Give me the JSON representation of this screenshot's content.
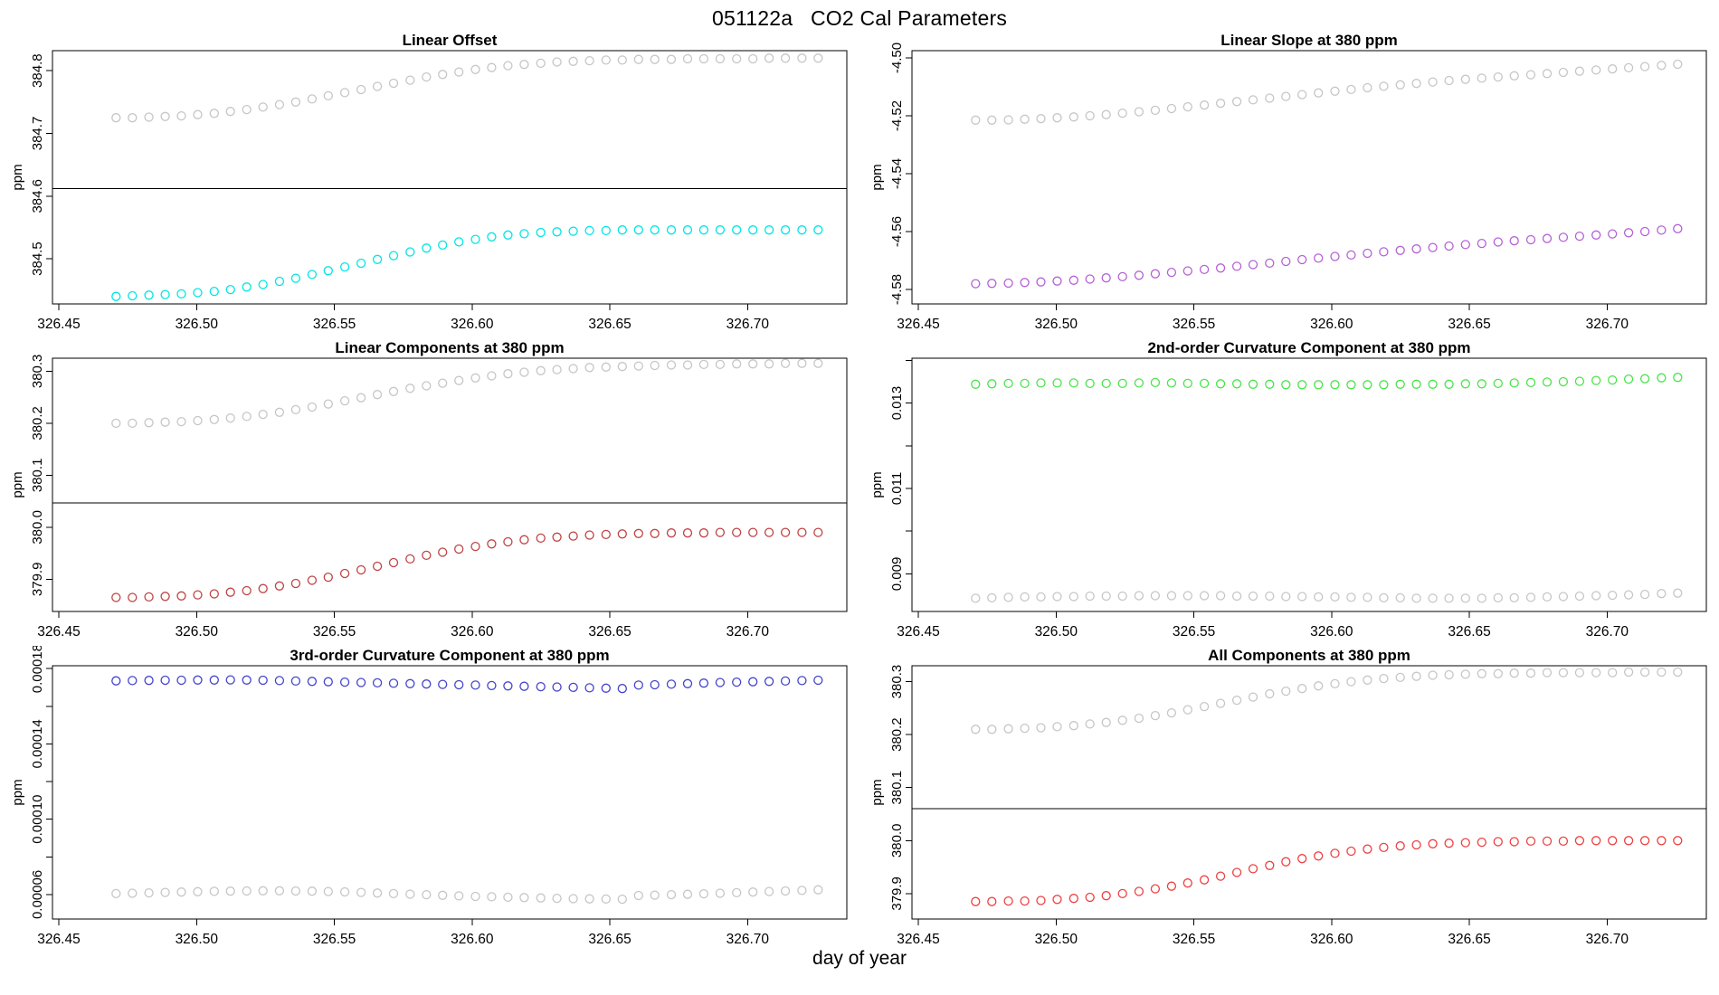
{
  "title": "051122a   CO2 Cal Parameters",
  "xlabel": "day of year",
  "background": "#ffffff",
  "colors": {
    "gray": "#c6c6c6",
    "cyan": "#00e5e5",
    "purple": "#b661d6",
    "dark_red": "#c04343",
    "green": "#4ae44a",
    "blue": "#4444cc",
    "red": "#ee4040",
    "axis": "#000000"
  },
  "x_axis": {
    "lim": [
      326.4477,
      326.736
    ],
    "ticks": [
      {
        "v": 326.45,
        "label": "326.45"
      },
      {
        "v": 326.5,
        "label": "326.50"
      },
      {
        "v": 326.55,
        "label": "326.55"
      },
      {
        "v": 326.6,
        "label": "326.60"
      },
      {
        "v": 326.65,
        "label": "326.65"
      },
      {
        "v": 326.7,
        "label": "326.70"
      }
    ]
  },
  "x_days": [
    326.4708,
    326.4767,
    326.4827,
    326.4886,
    326.4945,
    326.5004,
    326.5064,
    326.5123,
    326.5182,
    326.5241,
    326.5301,
    326.536,
    326.5419,
    326.5478,
    326.5538,
    326.5597,
    326.5656,
    326.5715,
    326.5775,
    326.5834,
    326.5893,
    326.5952,
    326.6012,
    326.6071,
    326.613,
    326.6189,
    326.6249,
    326.6308,
    326.6367,
    326.6426,
    326.6486,
    326.6545,
    326.6604,
    326.6663,
    326.6723,
    326.6782,
    326.6841,
    326.69,
    326.696,
    326.7019,
    326.7078,
    326.7137,
    326.7197,
    326.7256
  ],
  "chart_data": [
    {
      "type": "scatter",
      "title": "Linear Offset",
      "ylabel": "ppm",
      "ylim": [
        384.428,
        384.832
      ],
      "hline": 384.612,
      "yticks": [
        {
          "v": 384.5,
          "label": "384.5"
        },
        {
          "v": 384.6,
          "label": "384.6"
        },
        {
          "v": 384.7,
          "label": "384.7"
        },
        {
          "v": 384.8,
          "label": "384.8"
        }
      ],
      "yticks_minor": [],
      "series": [
        {
          "name": "gray",
          "color": "#c6c6c6",
          "values": [
            384.725,
            384.725,
            384.726,
            384.727,
            384.728,
            384.73,
            384.732,
            384.735,
            384.738,
            384.742,
            384.746,
            384.75,
            384.755,
            384.76,
            384.765,
            384.77,
            384.775,
            384.78,
            384.785,
            384.79,
            384.794,
            384.798,
            384.802,
            384.805,
            384.808,
            384.81,
            384.812,
            384.814,
            384.815,
            384.816,
            384.817,
            384.817,
            384.818,
            384.818,
            384.818,
            384.819,
            384.819,
            384.819,
            384.819,
            384.819,
            384.82,
            384.82,
            384.82,
            384.82
          ]
        },
        {
          "name": "cyan",
          "color": "#00e5e5",
          "values": [
            384.44,
            384.441,
            384.442,
            384.443,
            384.444,
            384.446,
            384.448,
            384.451,
            384.455,
            384.459,
            384.464,
            384.469,
            384.475,
            384.481,
            384.487,
            384.493,
            384.499,
            384.505,
            384.511,
            384.517,
            384.522,
            384.527,
            384.531,
            384.535,
            384.538,
            384.54,
            384.542,
            384.543,
            384.544,
            384.545,
            384.545,
            384.546,
            384.546,
            384.546,
            384.546,
            384.546,
            384.546,
            384.546,
            384.546,
            384.546,
            384.546,
            384.546,
            384.546,
            384.546
          ]
        }
      ]
    },
    {
      "type": "scatter",
      "title": "Linear Slope at 380 ppm",
      "ylabel": "ppm",
      "ylim": [
        -4.585,
        -4.4975
      ],
      "hline": null,
      "yticks": [
        {
          "v": -4.58,
          "label": "-4.58"
        },
        {
          "v": -4.56,
          "label": "-4.56"
        },
        {
          "v": -4.54,
          "label": "-4.54"
        },
        {
          "v": -4.52,
          "label": "-4.52"
        },
        {
          "v": -4.5,
          "label": "-4.50"
        }
      ],
      "yticks_minor": [],
      "series": [
        {
          "name": "gray",
          "color": "#c6c6c6",
          "values": [
            -4.5215,
            -4.5215,
            -4.5214,
            -4.5212,
            -4.521,
            -4.5207,
            -4.5204,
            -4.52,
            -4.5196,
            -4.5191,
            -4.5186,
            -4.5181,
            -4.5175,
            -4.5169,
            -4.5163,
            -4.5157,
            -4.5151,
            -4.5145,
            -4.5139,
            -4.5133,
            -4.5127,
            -4.5121,
            -4.5115,
            -4.5109,
            -4.5103,
            -4.5098,
            -4.5093,
            -4.5088,
            -4.5083,
            -4.5078,
            -4.5074,
            -4.507,
            -4.5066,
            -4.5062,
            -4.5058,
            -4.5054,
            -4.505,
            -4.5046,
            -4.5042,
            -4.5038,
            -4.5034,
            -4.503,
            -4.5026,
            -4.5022
          ]
        },
        {
          "name": "purple",
          "color": "#b661d6",
          "values": [
            -4.578,
            -4.5779,
            -4.5778,
            -4.5776,
            -4.5774,
            -4.5771,
            -4.5768,
            -4.5764,
            -4.576,
            -4.5756,
            -4.5751,
            -4.5746,
            -4.5741,
            -4.5736,
            -4.5731,
            -4.5726,
            -4.572,
            -4.5714,
            -4.5709,
            -4.5703,
            -4.5697,
            -4.5692,
            -4.5686,
            -4.5681,
            -4.5675,
            -4.567,
            -4.5665,
            -4.566,
            -4.5655,
            -4.565,
            -4.5645,
            -4.5641,
            -4.5636,
            -4.5632,
            -4.5628,
            -4.5624,
            -4.562,
            -4.5616,
            -4.5612,
            -4.5608,
            -4.5604,
            -4.56,
            -4.5595,
            -4.559
          ]
        }
      ]
    },
    {
      "type": "scatter",
      "title": "Linear Components at 380 ppm",
      "ylabel": "ppm",
      "ylim": [
        379.838,
        380.325
      ],
      "hline": 380.047,
      "yticks": [
        {
          "v": 379.9,
          "label": "379.9"
        },
        {
          "v": 380.0,
          "label": "380.0"
        },
        {
          "v": 380.1,
          "label": "380.1"
        },
        {
          "v": 380.2,
          "label": "380.2"
        },
        {
          "v": 380.3,
          "label": "380.3"
        }
      ],
      "yticks_minor": [],
      "series": [
        {
          "name": "gray",
          "color": "#c6c6c6",
          "values": [
            380.2,
            380.2,
            380.201,
            380.202,
            380.203,
            380.205,
            380.207,
            380.21,
            380.213,
            380.217,
            380.221,
            380.226,
            380.231,
            380.237,
            380.243,
            380.249,
            380.255,
            380.261,
            380.267,
            380.272,
            380.277,
            380.282,
            380.287,
            380.291,
            380.295,
            380.298,
            380.301,
            380.303,
            380.305,
            380.307,
            380.308,
            380.309,
            380.31,
            380.311,
            380.312,
            380.312,
            380.313,
            380.313,
            380.314,
            380.314,
            380.314,
            380.315,
            380.315,
            380.315
          ]
        },
        {
          "name": "dark-red",
          "color": "#c04343",
          "values": [
            379.865,
            379.865,
            379.866,
            379.867,
            379.868,
            379.87,
            379.872,
            379.875,
            379.878,
            379.882,
            379.887,
            379.892,
            379.898,
            379.904,
            379.911,
            379.918,
            379.925,
            379.932,
            379.939,
            379.946,
            379.952,
            379.958,
            379.963,
            379.968,
            379.972,
            379.976,
            379.979,
            379.981,
            379.983,
            379.985,
            379.986,
            379.987,
            379.988,
            379.988,
            379.989,
            379.989,
            379.989,
            379.99,
            379.99,
            379.99,
            379.99,
            379.99,
            379.99,
            379.99
          ]
        }
      ]
    },
    {
      "type": "scatter",
      "title": "2nd-order Curvature Component at 380 ppm",
      "ylabel": "ppm",
      "ylim": [
        0.00812,
        0.01405
      ],
      "hline": null,
      "yticks": [
        {
          "v": 0.009,
          "label": "0.009"
        },
        {
          "v": 0.011,
          "label": "0.011"
        },
        {
          "v": 0.013,
          "label": "0.013"
        }
      ],
      "yticks_minor": [
        0.01,
        0.012,
        0.014
      ],
      "series": [
        {
          "name": "green",
          "color": "#4ae44a",
          "values": [
            0.01344,
            0.01345,
            0.01346,
            0.01346,
            0.01347,
            0.01347,
            0.01347,
            0.01346,
            0.01346,
            0.01346,
            0.01347,
            0.01348,
            0.01347,
            0.01346,
            0.01346,
            0.01345,
            0.01345,
            0.01344,
            0.01344,
            0.01343,
            0.01343,
            0.01343,
            0.01343,
            0.01343,
            0.01343,
            0.01343,
            0.01344,
            0.01344,
            0.01344,
            0.01344,
            0.01345,
            0.01345,
            0.01346,
            0.01347,
            0.01348,
            0.01349,
            0.0135,
            0.01351,
            0.01353,
            0.01354,
            0.01356,
            0.01357,
            0.01359,
            0.0136
          ]
        },
        {
          "name": "gray",
          "color": "#c6c6c6",
          "values": [
            0.00843,
            0.00844,
            0.00845,
            0.00846,
            0.00846,
            0.00847,
            0.00847,
            0.00848,
            0.00848,
            0.00848,
            0.00849,
            0.00849,
            0.00849,
            0.00849,
            0.00849,
            0.00849,
            0.00848,
            0.00848,
            0.00848,
            0.00847,
            0.00847,
            0.00846,
            0.00846,
            0.00845,
            0.00845,
            0.00844,
            0.00844,
            0.00843,
            0.00843,
            0.00843,
            0.00843,
            0.00843,
            0.00844,
            0.00844,
            0.00845,
            0.00846,
            0.00847,
            0.00848,
            0.00849,
            0.0085,
            0.00851,
            0.00852,
            0.00854,
            0.00855
          ]
        }
      ]
    },
    {
      "type": "scatter",
      "title": "3rd-order Curvature Component at 380 ppm",
      "ylabel": "ppm",
      "ylim": [
        4.7e-05,
        0.0001815
      ],
      "hline": null,
      "yticks": [
        {
          "v": 6e-05,
          "label": "0.00006"
        },
        {
          "v": 0.0001,
          "label": "0.00010"
        },
        {
          "v": 0.00014,
          "label": "0.00014"
        },
        {
          "v": 0.00018,
          "label": "0.00018"
        }
      ],
      "yticks_minor": [
        8e-05,
        0.00012,
        0.00016
      ],
      "series": [
        {
          "name": "blue",
          "color": "#4444cc",
          "values": [
            0.0001735,
            0.0001736,
            0.0001737,
            0.0001738,
            0.0001738,
            0.0001739,
            0.0001739,
            0.000174,
            0.0001739,
            0.0001738,
            0.0001736,
            0.0001734,
            0.0001732,
            0.000173,
            0.0001728,
            0.0001726,
            0.0001724,
            0.0001722,
            0.000172,
            0.0001718,
            0.0001716,
            0.0001714,
            0.0001712,
            0.000171,
            0.0001708,
            0.0001706,
            0.0001704,
            0.0001702,
            0.00017,
            0.0001698,
            0.0001696,
            0.0001694,
            0.0001712,
            0.0001714,
            0.0001717,
            0.000172,
            0.0001723,
            0.0001726,
            0.0001728,
            0.000173,
            0.0001732,
            0.0001734,
            0.0001736,
            0.0001738
          ]
        },
        {
          "name": "gray",
          "color": "#c6c6c6",
          "values": [
            6.05e-05,
            6.07e-05,
            6.09e-05,
            6.11e-05,
            6.13e-05,
            6.15e-05,
            6.17e-05,
            6.18e-05,
            6.19e-05,
            6.2e-05,
            6.2e-05,
            6.19e-05,
            6.18e-05,
            6.16e-05,
            6.14e-05,
            6.11e-05,
            6.08e-05,
            6.05e-05,
            6.02e-05,
            5.99e-05,
            5.96e-05,
            5.93e-05,
            5.9e-05,
            5.88e-05,
            5.86e-05,
            5.84e-05,
            5.82e-05,
            5.8e-05,
            5.78e-05,
            5.77e-05,
            5.76e-05,
            5.75e-05,
            5.95e-05,
            5.97e-05,
            5.99e-05,
            6.01e-05,
            6.04e-05,
            6.07e-05,
            6.1e-05,
            6.13e-05,
            6.16e-05,
            6.19e-05,
            6.22e-05,
            6.25e-05
          ]
        }
      ]
    },
    {
      "type": "scatter",
      "title": "All Components at 380 ppm",
      "ylabel": "ppm",
      "ylim": [
        379.852,
        380.33
      ],
      "hline": 380.06,
      "yticks": [
        {
          "v": 379.9,
          "label": "379.9"
        },
        {
          "v": 380.0,
          "label": "380.0"
        },
        {
          "v": 380.1,
          "label": "380.1"
        },
        {
          "v": 380.2,
          "label": "380.2"
        },
        {
          "v": 380.3,
          "label": "380.3"
        }
      ],
      "yticks_minor": [],
      "series": [
        {
          "name": "gray",
          "color": "#c6c6c6",
          "values": [
            380.21,
            380.21,
            380.211,
            380.212,
            380.213,
            380.215,
            380.217,
            380.22,
            380.223,
            380.227,
            380.231,
            380.236,
            380.241,
            380.247,
            380.253,
            380.259,
            380.265,
            380.271,
            380.277,
            380.282,
            380.287,
            380.292,
            380.296,
            380.3,
            380.303,
            380.306,
            380.308,
            380.31,
            380.312,
            380.313,
            380.314,
            380.315,
            380.315,
            380.316,
            380.316,
            380.317,
            380.317,
            380.317,
            380.317,
            380.317,
            380.318,
            380.318,
            380.318,
            380.318
          ]
        },
        {
          "name": "red",
          "color": "#ee4040",
          "values": [
            379.885,
            379.885,
            379.886,
            379.886,
            379.887,
            379.889,
            379.891,
            379.893,
            379.896,
            379.9,
            379.904,
            379.909,
            379.914,
            379.92,
            379.926,
            379.933,
            379.94,
            379.947,
            379.953,
            379.96,
            379.966,
            379.971,
            379.976,
            379.98,
            379.984,
            379.987,
            379.99,
            379.992,
            379.994,
            379.995,
            379.996,
            379.997,
            379.998,
            379.998,
            379.999,
            379.999,
            379.999,
            380.0,
            380.0,
            380.0,
            380.0,
            380.0,
            380.0,
            380.0
          ]
        }
      ]
    }
  ]
}
